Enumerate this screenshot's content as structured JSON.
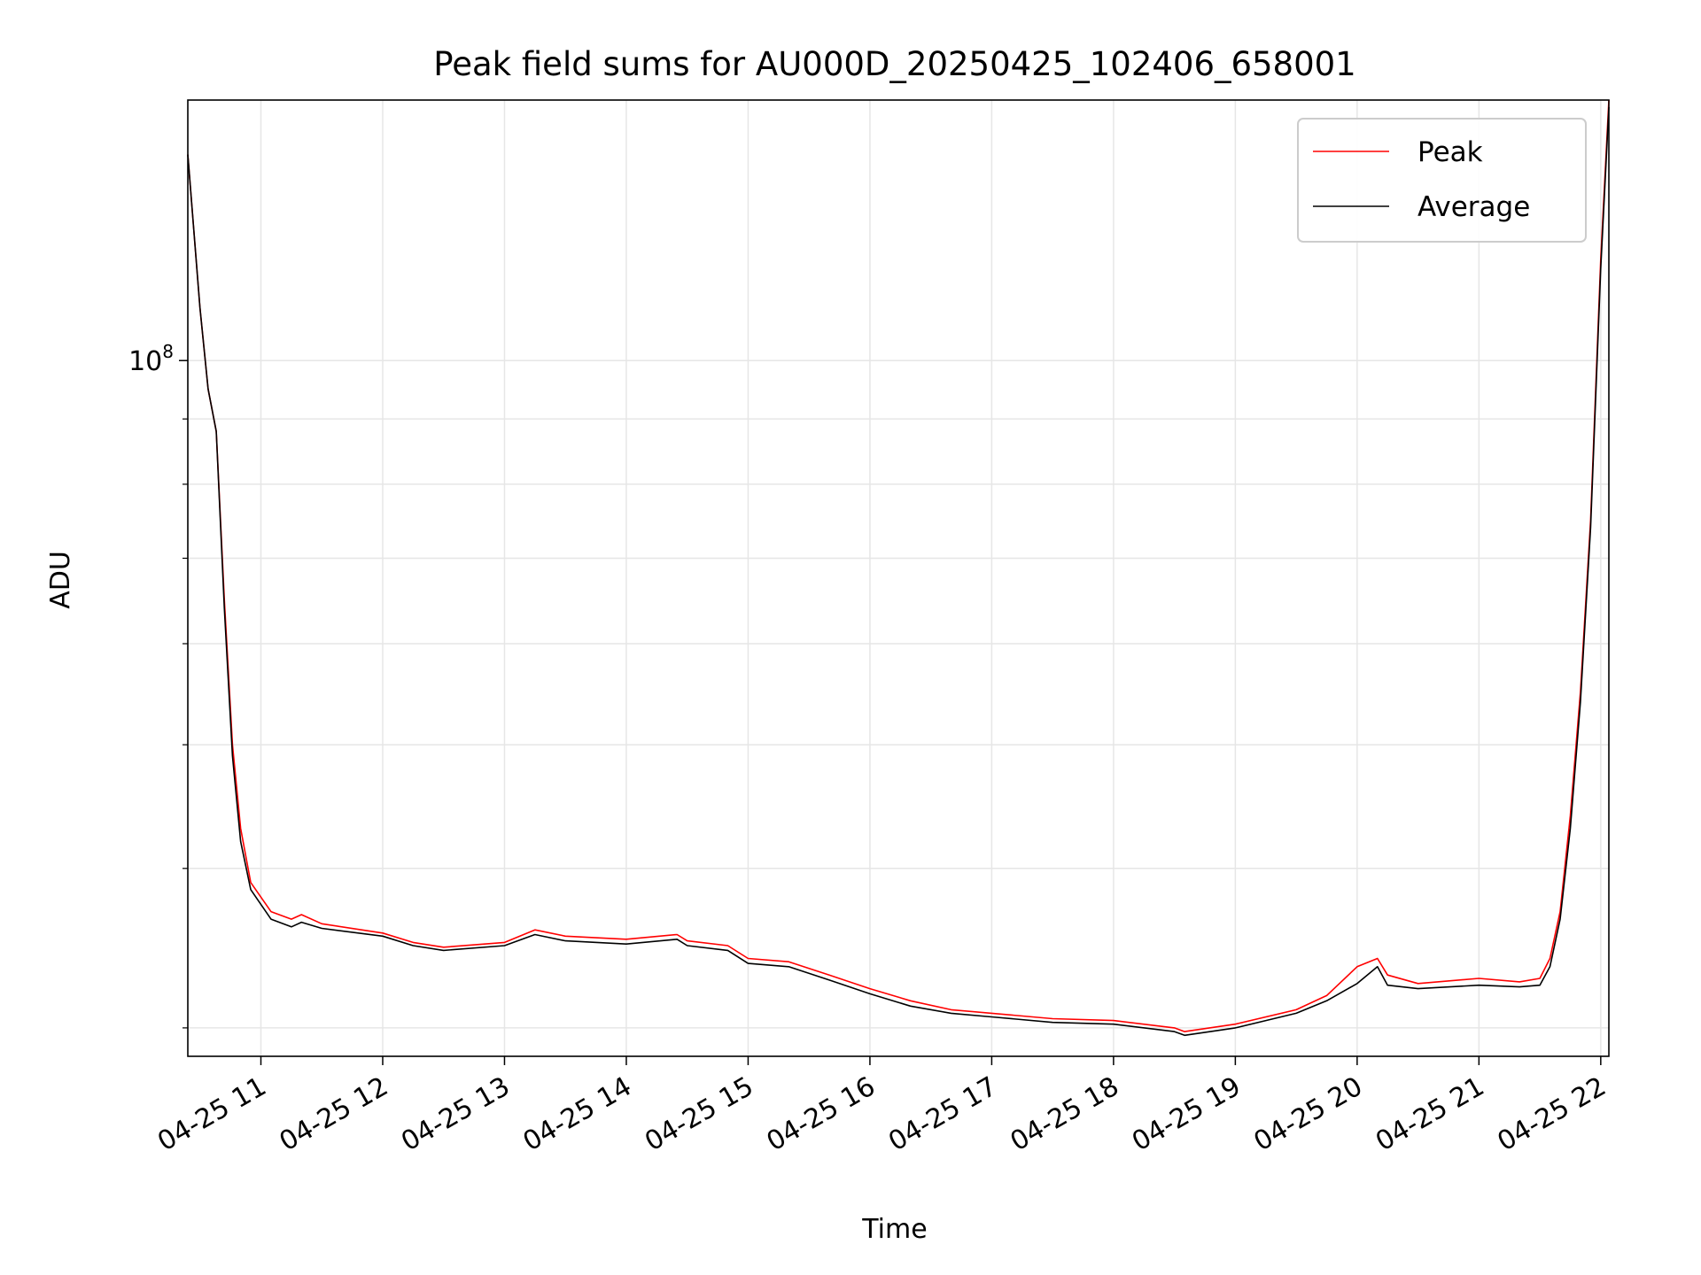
{
  "chart_data": {
    "type": "line",
    "title": "Peak field sums for AU000D_20250425_102406_658001",
    "xlabel": "Time",
    "ylabel": "ADU",
    "yscale": "log",
    "grid": true,
    "legend_position": "top-right",
    "x_range": [
      "2025-04-25 10:24",
      "2025-04-25 22:04"
    ],
    "y_range": [
      28500000,
      160000000
    ],
    "x_ticks": [
      {
        "value": "2025-04-25 11:00",
        "label": "04-25 11"
      },
      {
        "value": "2025-04-25 12:00",
        "label": "04-25 12"
      },
      {
        "value": "2025-04-25 13:00",
        "label": "04-25 13"
      },
      {
        "value": "2025-04-25 14:00",
        "label": "04-25 14"
      },
      {
        "value": "2025-04-25 15:00",
        "label": "04-25 15"
      },
      {
        "value": "2025-04-25 16:00",
        "label": "04-25 16"
      },
      {
        "value": "2025-04-25 17:00",
        "label": "04-25 17"
      },
      {
        "value": "2025-04-25 18:00",
        "label": "04-25 18"
      },
      {
        "value": "2025-04-25 19:00",
        "label": "04-25 19"
      },
      {
        "value": "2025-04-25 20:00",
        "label": "04-25 20"
      },
      {
        "value": "2025-04-25 21:00",
        "label": "04-25 21"
      },
      {
        "value": "2025-04-25 22:00",
        "label": "04-25 22"
      }
    ],
    "y_major_ticks": [
      {
        "value": 100000000,
        "label_base": "10",
        "label_exp": "8"
      }
    ],
    "y_minor_ticks": [
      30000000,
      40000000,
      50000000,
      60000000,
      70000000,
      80000000,
      90000000
    ],
    "series": [
      {
        "name": "Peak",
        "color": "#ff0000",
        "x": [
          "2025-04-25 10:24",
          "2025-04-25 10:30",
          "2025-04-25 10:34",
          "2025-04-25 10:38",
          "2025-04-25 10:42",
          "2025-04-25 10:46",
          "2025-04-25 10:50",
          "2025-04-25 10:55",
          "2025-04-25 11:05",
          "2025-04-25 11:15",
          "2025-04-25 11:20",
          "2025-04-25 11:30",
          "2025-04-25 12:00",
          "2025-04-25 12:15",
          "2025-04-25 12:30",
          "2025-04-25 13:00",
          "2025-04-25 13:15",
          "2025-04-25 13:30",
          "2025-04-25 14:00",
          "2025-04-25 14:25",
          "2025-04-25 14:30",
          "2025-04-25 14:50",
          "2025-04-25 15:00",
          "2025-04-25 15:20",
          "2025-04-25 15:40",
          "2025-04-25 16:00",
          "2025-04-25 16:20",
          "2025-04-25 16:40",
          "2025-04-25 17:00",
          "2025-04-25 17:30",
          "2025-04-25 18:00",
          "2025-04-25 18:30",
          "2025-04-25 18:35",
          "2025-04-25 19:00",
          "2025-04-25 19:30",
          "2025-04-25 19:45",
          "2025-04-25 20:00",
          "2025-04-25 20:10",
          "2025-04-25 20:15",
          "2025-04-25 20:30",
          "2025-04-25 21:00",
          "2025-04-25 21:20",
          "2025-04-25 21:30",
          "2025-04-25 21:35",
          "2025-04-25 21:40",
          "2025-04-25 21:45",
          "2025-04-25 21:50",
          "2025-04-25 21:55",
          "2025-04-25 22:00",
          "2025-04-25 22:04"
        ],
        "y": [
          145000000,
          110000000,
          95000000,
          88000000,
          65000000,
          50000000,
          43000000,
          39000000,
          37000000,
          36500000,
          36800000,
          36200000,
          35600000,
          35000000,
          34700000,
          35000000,
          35800000,
          35400000,
          35200000,
          35500000,
          35100000,
          34800000,
          34000000,
          33800000,
          33000000,
          32200000,
          31500000,
          31000000,
          30800000,
          30500000,
          30400000,
          30000000,
          29800000,
          30200000,
          31000000,
          31800000,
          33500000,
          34000000,
          33000000,
          32500000,
          32800000,
          32600000,
          32800000,
          34000000,
          37000000,
          44000000,
          55000000,
          75000000,
          120000000,
          160000000
        ]
      },
      {
        "name": "Average",
        "color": "#000000",
        "x": [
          "2025-04-25 10:24",
          "2025-04-25 10:30",
          "2025-04-25 10:34",
          "2025-04-25 10:38",
          "2025-04-25 10:42",
          "2025-04-25 10:46",
          "2025-04-25 10:50",
          "2025-04-25 10:55",
          "2025-04-25 11:05",
          "2025-04-25 11:15",
          "2025-04-25 11:20",
          "2025-04-25 11:30",
          "2025-04-25 12:00",
          "2025-04-25 12:15",
          "2025-04-25 12:30",
          "2025-04-25 13:00",
          "2025-04-25 13:15",
          "2025-04-25 13:30",
          "2025-04-25 14:00",
          "2025-04-25 14:25",
          "2025-04-25 14:30",
          "2025-04-25 14:50",
          "2025-04-25 15:00",
          "2025-04-25 15:20",
          "2025-04-25 15:40",
          "2025-04-25 16:00",
          "2025-04-25 16:20",
          "2025-04-25 16:40",
          "2025-04-25 17:00",
          "2025-04-25 17:30",
          "2025-04-25 18:00",
          "2025-04-25 18:30",
          "2025-04-25 18:35",
          "2025-04-25 19:00",
          "2025-04-25 19:30",
          "2025-04-25 19:45",
          "2025-04-25 20:00",
          "2025-04-25 20:10",
          "2025-04-25 20:15",
          "2025-04-25 20:30",
          "2025-04-25 21:00",
          "2025-04-25 21:20",
          "2025-04-25 21:30",
          "2025-04-25 21:35",
          "2025-04-25 21:40",
          "2025-04-25 21:45",
          "2025-04-25 21:50",
          "2025-04-25 21:55",
          "2025-04-25 22:00",
          "2025-04-25 22:04"
        ],
        "y": [
          145000000,
          110000000,
          95000000,
          88000000,
          64000000,
          49000000,
          42000000,
          38500000,
          36500000,
          36000000,
          36300000,
          35900000,
          35400000,
          34800000,
          34500000,
          34800000,
          35500000,
          35100000,
          34900000,
          35200000,
          34800000,
          34500000,
          33700000,
          33500000,
          32700000,
          31900000,
          31200000,
          30800000,
          30600000,
          30300000,
          30200000,
          29800000,
          29600000,
          30000000,
          30800000,
          31500000,
          32500000,
          33500000,
          32400000,
          32200000,
          32400000,
          32300000,
          32400000,
          33500000,
          36500000,
          43000000,
          54000000,
          74000000,
          118000000,
          158000000
        ]
      }
    ]
  }
}
